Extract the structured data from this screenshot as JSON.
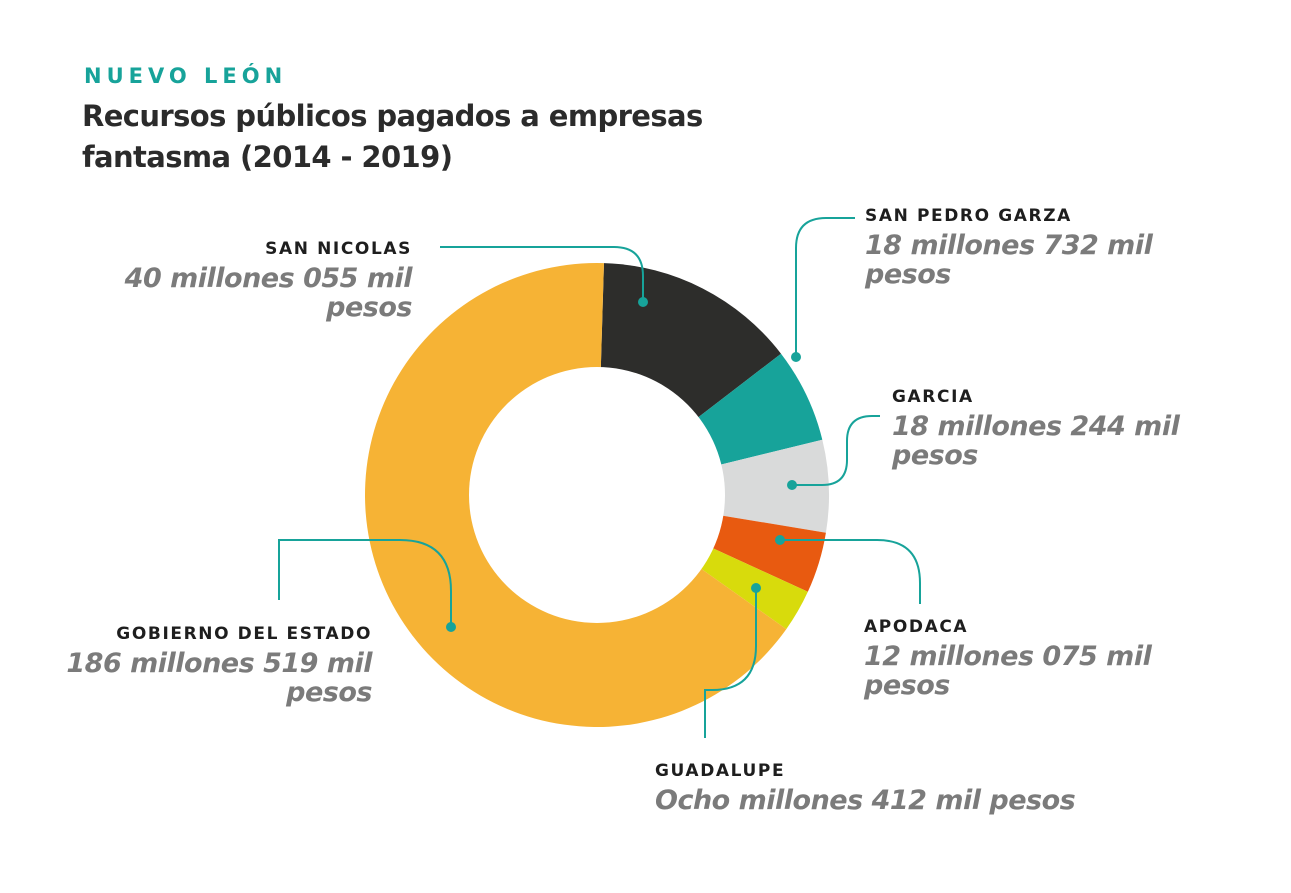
{
  "header": {
    "kicker": "NUEVO LEÓN",
    "title": "Recursos públicos pagados a empresas fantasma (2014 - 2019)"
  },
  "colors": {
    "accent": "#17a39a",
    "leader": "#17a39a",
    "hole": "#ffffff"
  },
  "chart_data": {
    "type": "pie",
    "subtype": "donut",
    "title": "Recursos públicos pagados a empresas fantasma (2014 - 2019)",
    "unit": "millones de pesos",
    "series": [
      {
        "name": "SAN NICOLAS",
        "value": 40.055,
        "value_label": "40 millones 055 mil pesos",
        "color": "#2d2d2b"
      },
      {
        "name": "SAN PEDRO GARZA",
        "value": 18.732,
        "value_label": "18 millones 732 mil pesos",
        "color": "#17a39a"
      },
      {
        "name": "GARCIA",
        "value": 18.244,
        "value_label": "18 millones 244 mil pesos",
        "color": "#d9dada"
      },
      {
        "name": "APODACA",
        "value": 12.075,
        "value_label": "12 millones 075 mil pesos",
        "color": "#e85a10"
      },
      {
        "name": "GUADALUPE",
        "value": 8.412,
        "value_label": "Ocho millones 412 mil pesos",
        "color": "#d8db0c"
      },
      {
        "name": "GOBIERNO DEL ESTADO",
        "value": 186.519,
        "value_label": "186 millones 519 mil pesos",
        "color": "#f6b335"
      }
    ]
  }
}
